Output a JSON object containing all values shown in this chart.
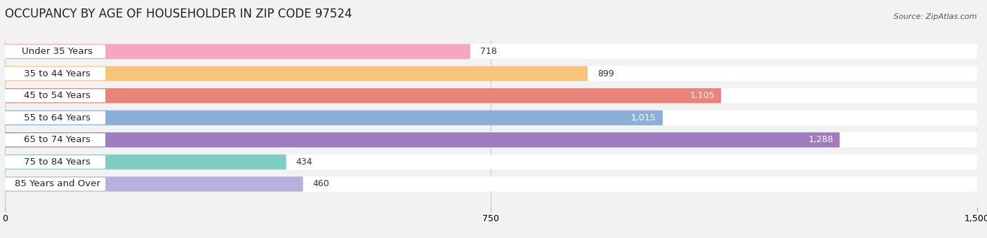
{
  "title": "OCCUPANCY BY AGE OF HOUSEHOLDER IN ZIP CODE 97524",
  "source": "Source: ZipAtlas.com",
  "categories": [
    "Under 35 Years",
    "35 to 44 Years",
    "45 to 54 Years",
    "55 to 64 Years",
    "65 to 74 Years",
    "75 to 84 Years",
    "85 Years and Over"
  ],
  "values": [
    718,
    899,
    1105,
    1015,
    1288,
    434,
    460
  ],
  "bar_colors": [
    "#F4A7BE",
    "#F7C47A",
    "#E8847A",
    "#8BAFD6",
    "#A07CC0",
    "#7ECEC4",
    "#B8B0DC"
  ],
  "xlim_max": 1500,
  "xticks": [
    0,
    750,
    1500
  ],
  "bar_height": 0.68,
  "bg_color": "#f2f2f2",
  "label_fontsize": 9.5,
  "value_fontsize": 9.0,
  "title_fontsize": 12
}
